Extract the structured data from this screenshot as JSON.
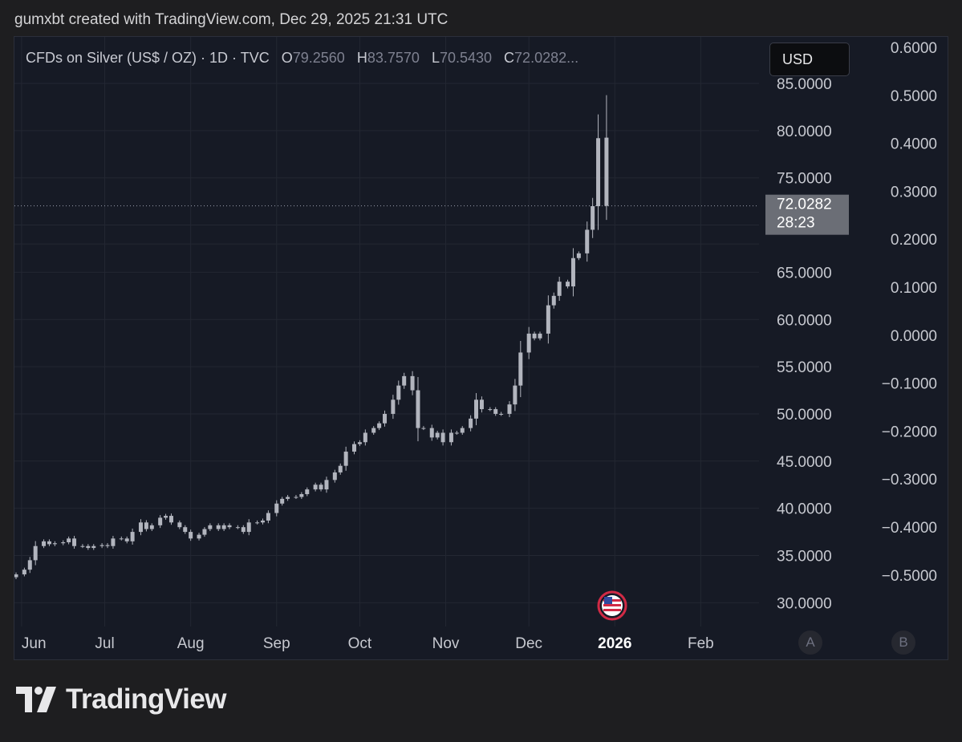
{
  "header": {
    "caption": "gumxbt created with TradingView.com, Dec 29, 2025 21:31 UTC"
  },
  "legend": {
    "symbol": "CFDs on Silver (US$ / OZ) · 1D · TVC",
    "open_key": "O",
    "open": "79.2560",
    "high_key": "H",
    "high": "83.7570",
    "low_key": "L",
    "low": "70.5430",
    "close_key": "C",
    "close": "72.0282..."
  },
  "currency_button": "USD",
  "last_price": {
    "value": "72.0282",
    "countdown": "28:23"
  },
  "scale_buttons": {
    "left": "A",
    "right": "B"
  },
  "footer": {
    "brand": "TradingView"
  },
  "colors": {
    "background": "#161a25",
    "candle": "#b2b5be",
    "grid": "#232732",
    "axis_text": "#c7c9d0",
    "price_tag": "#6b6e76",
    "event_flag": "#e0304a"
  },
  "icons": [
    "tradingview-logo-icon",
    "us-flag-event-icon"
  ],
  "chart_data": {
    "type": "candlestick",
    "title": "CFDs on Silver (US$ / OZ) · 1D · TVC",
    "x_axis": {
      "tick_labels": [
        "Jun",
        "Jul",
        "Aug",
        "Sep",
        "Oct",
        "Nov",
        "Dec",
        "2026",
        "Feb"
      ],
      "range": [
        "2025-05-30",
        "2026-02-28"
      ]
    },
    "y_axis_price": {
      "ticks": [
        30,
        35,
        40,
        45,
        50,
        55,
        60,
        65,
        75,
        80,
        85
      ],
      "tick_labels": [
        "30.0000",
        "35.0000",
        "40.0000",
        "45.0000",
        "50.0000",
        "55.0000",
        "60.0000",
        "65.0000",
        "75.0000",
        "80.0000",
        "85.0000"
      ],
      "range": [
        26,
        87
      ]
    },
    "y_axis_secondary": {
      "tick_labels": [
        "0.6000",
        "0.5000",
        "0.4000",
        "0.3000",
        "0.2000",
        "0.1000",
        "0.0000",
        "−0.1000",
        "−0.2000",
        "−0.3000",
        "−0.4000",
        "−0.5000"
      ],
      "ticks": [
        0.6,
        0.5,
        0.4,
        0.3,
        0.2,
        0.1,
        0.0,
        -0.1,
        -0.2,
        -0.3,
        -0.4,
        -0.5
      ],
      "range": [
        -0.6,
        0.6
      ]
    },
    "last_price": 72.0282,
    "grid": true,
    "close_series": [
      [
        "2025-05-30",
        33.0
      ],
      [
        "2025-06-02",
        33.5
      ],
      [
        "2025-06-04",
        34.5
      ],
      [
        "2025-06-06",
        36.0
      ],
      [
        "2025-06-09",
        36.5
      ],
      [
        "2025-06-11",
        36.2
      ],
      [
        "2025-06-13",
        36.3
      ],
      [
        "2025-06-16",
        36.4
      ],
      [
        "2025-06-18",
        36.8
      ],
      [
        "2025-06-20",
        36.0
      ],
      [
        "2025-06-23",
        36.0
      ],
      [
        "2025-06-25",
        35.8
      ],
      [
        "2025-06-27",
        36.0
      ],
      [
        "2025-06-30",
        36.1
      ],
      [
        "2025-07-02",
        36.0
      ],
      [
        "2025-07-04",
        36.8
      ],
      [
        "2025-07-07",
        36.8
      ],
      [
        "2025-07-09",
        36.5
      ],
      [
        "2025-07-11",
        37.5
      ],
      [
        "2025-07-14",
        38.5
      ],
      [
        "2025-07-16",
        37.8
      ],
      [
        "2025-07-18",
        38.2
      ],
      [
        "2025-07-21",
        39.0
      ],
      [
        "2025-07-23",
        39.2
      ],
      [
        "2025-07-25",
        38.5
      ],
      [
        "2025-07-28",
        38.0
      ],
      [
        "2025-07-30",
        37.5
      ],
      [
        "2025-08-01",
        36.8
      ],
      [
        "2025-08-04",
        37.2
      ],
      [
        "2025-08-06",
        37.8
      ],
      [
        "2025-08-08",
        38.2
      ],
      [
        "2025-08-11",
        37.8
      ],
      [
        "2025-08-13",
        38.2
      ],
      [
        "2025-08-15",
        38.0
      ],
      [
        "2025-08-18",
        38.0
      ],
      [
        "2025-08-20",
        37.5
      ],
      [
        "2025-08-22",
        38.5
      ],
      [
        "2025-08-25",
        38.5
      ],
      [
        "2025-08-27",
        38.7
      ],
      [
        "2025-08-29",
        39.5
      ],
      [
        "2025-09-01",
        40.5
      ],
      [
        "2025-09-03",
        41.0
      ],
      [
        "2025-09-05",
        41.2
      ],
      [
        "2025-09-08",
        41.2
      ],
      [
        "2025-09-10",
        41.5
      ],
      [
        "2025-09-12",
        42.0
      ],
      [
        "2025-09-15",
        42.5
      ],
      [
        "2025-09-17",
        42.0
      ],
      [
        "2025-09-19",
        43.0
      ],
      [
        "2025-09-22",
        43.8
      ],
      [
        "2025-09-24",
        44.5
      ],
      [
        "2025-09-26",
        46.0
      ],
      [
        "2025-09-29",
        46.8
      ],
      [
        "2025-10-01",
        47.0
      ],
      [
        "2025-10-03",
        48.0
      ],
      [
        "2025-10-06",
        48.5
      ],
      [
        "2025-10-08",
        49.0
      ],
      [
        "2025-10-10",
        50.0
      ],
      [
        "2025-10-13",
        51.5
      ],
      [
        "2025-10-15",
        53.0
      ],
      [
        "2025-10-17",
        54.0
      ],
      [
        "2025-10-20",
        52.5
      ],
      [
        "2025-10-22",
        48.5
      ],
      [
        "2025-10-24",
        48.5
      ],
      [
        "2025-10-27",
        47.5
      ],
      [
        "2025-10-29",
        48.0
      ],
      [
        "2025-10-31",
        47.0
      ],
      [
        "2025-11-03",
        48.0
      ],
      [
        "2025-11-05",
        48.0
      ],
      [
        "2025-11-07",
        48.5
      ],
      [
        "2025-11-10",
        49.5
      ],
      [
        "2025-11-12",
        51.5
      ],
      [
        "2025-11-14",
        50.5
      ],
      [
        "2025-11-17",
        50.5
      ],
      [
        "2025-11-19",
        50.0
      ],
      [
        "2025-11-21",
        50.0
      ],
      [
        "2025-11-24",
        51.0
      ],
      [
        "2025-11-26",
        53.0
      ],
      [
        "2025-11-28",
        56.5
      ],
      [
        "2025-12-01",
        58.5
      ],
      [
        "2025-12-03",
        58.0
      ],
      [
        "2025-12-05",
        58.5
      ],
      [
        "2025-12-08",
        61.5
      ],
      [
        "2025-12-10",
        62.5
      ],
      [
        "2025-12-12",
        64.0
      ],
      [
        "2025-12-15",
        63.5
      ],
      [
        "2025-12-17",
        66.5
      ],
      [
        "2025-12-19",
        67.0
      ],
      [
        "2025-12-22",
        69.5
      ],
      [
        "2025-12-24",
        72.0
      ],
      [
        "2025-12-26",
        79.2
      ],
      [
        "2025-12-29",
        72.0282
      ]
    ],
    "last_candle": {
      "date": "2025-12-29",
      "open": 79.256,
      "high": 83.757,
      "low": 70.543,
      "close": 72.0282
    }
  }
}
